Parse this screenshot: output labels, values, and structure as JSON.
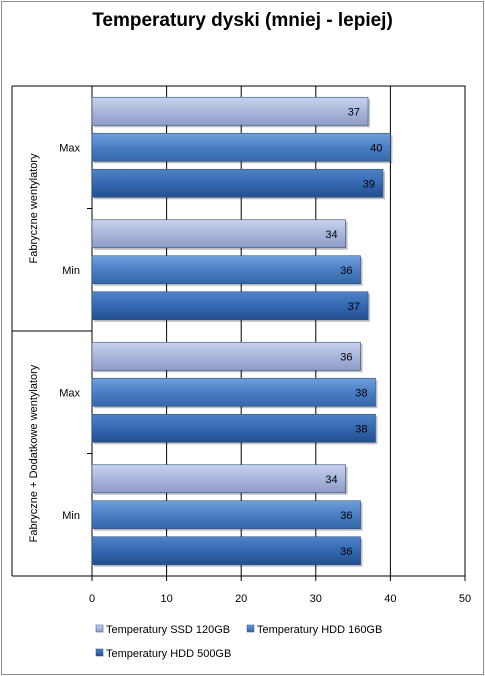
{
  "chart_data": {
    "type": "bar",
    "orientation": "horizontal",
    "title": "Temperatury dyski (mniej - lepiej)",
    "xlim": [
      0,
      50
    ],
    "xticks": [
      0,
      10,
      20,
      30,
      40,
      50
    ],
    "grid": true,
    "legend_position": "bottom",
    "groups": [
      {
        "label": "Fabryczne wentylatory",
        "categories": [
          {
            "label": "Max",
            "values": [
              37,
              40,
              39
            ]
          },
          {
            "label": "Min",
            "values": [
              34,
              36,
              37
            ]
          }
        ]
      },
      {
        "label": "Fabryczne + Dodatkowe  wentylatory",
        "categories": [
          {
            "label": "Max",
            "values": [
              36,
              38,
              38
            ]
          },
          {
            "label": "Min",
            "values": [
              34,
              36,
              36
            ]
          }
        ]
      }
    ],
    "series": [
      {
        "name": "Temperatury SSD 120GB",
        "color": "#a9b6db"
      },
      {
        "name": "Temperatury HDD 160GB",
        "color": "#4a7fc4"
      },
      {
        "name": "Temperatury HDD 500GB",
        "color": "#3468b0"
      }
    ]
  }
}
